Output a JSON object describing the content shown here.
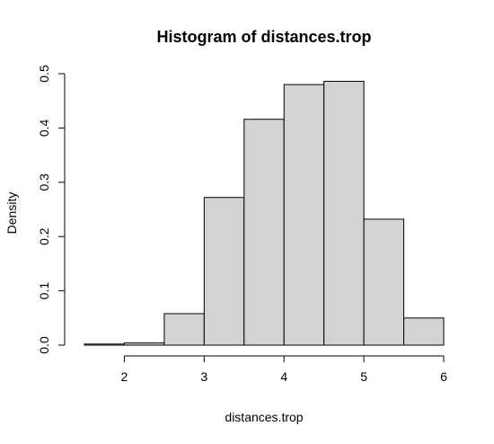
{
  "chart_data": {
    "type": "bar",
    "title": "Histogram of distances.trop",
    "xlabel": "distances.trop",
    "ylabel": "Density",
    "bins": [
      {
        "x0": 1.5,
        "x1": 2.0,
        "value": 0.002
      },
      {
        "x0": 2.0,
        "x1": 2.5,
        "value": 0.004
      },
      {
        "x0": 2.5,
        "x1": 3.0,
        "value": 0.058
      },
      {
        "x0": 3.0,
        "x1": 3.5,
        "value": 0.272
      },
      {
        "x0": 3.5,
        "x1": 4.0,
        "value": 0.416
      },
      {
        "x0": 4.0,
        "x1": 4.5,
        "value": 0.48
      },
      {
        "x0": 4.5,
        "x1": 5.0,
        "value": 0.486
      },
      {
        "x0": 5.0,
        "x1": 5.5,
        "value": 0.232
      },
      {
        "x0": 5.5,
        "x1": 6.0,
        "value": 0.05
      }
    ],
    "xlim": [
      1.5,
      6.0
    ],
    "ylim": [
      0,
      0.5
    ],
    "xticks": [
      2,
      3,
      4,
      5,
      6
    ],
    "xtick_labels": [
      "2",
      "3",
      "4",
      "5",
      "6"
    ],
    "yticks": [
      0.0,
      0.1,
      0.2,
      0.3,
      0.4,
      0.5
    ],
    "ytick_labels": [
      "0.0",
      "0.1",
      "0.2",
      "0.3",
      "0.4",
      "0.5"
    ],
    "grid": false,
    "bar_color": "#d3d3d3",
    "edge_color": "#000000"
  }
}
